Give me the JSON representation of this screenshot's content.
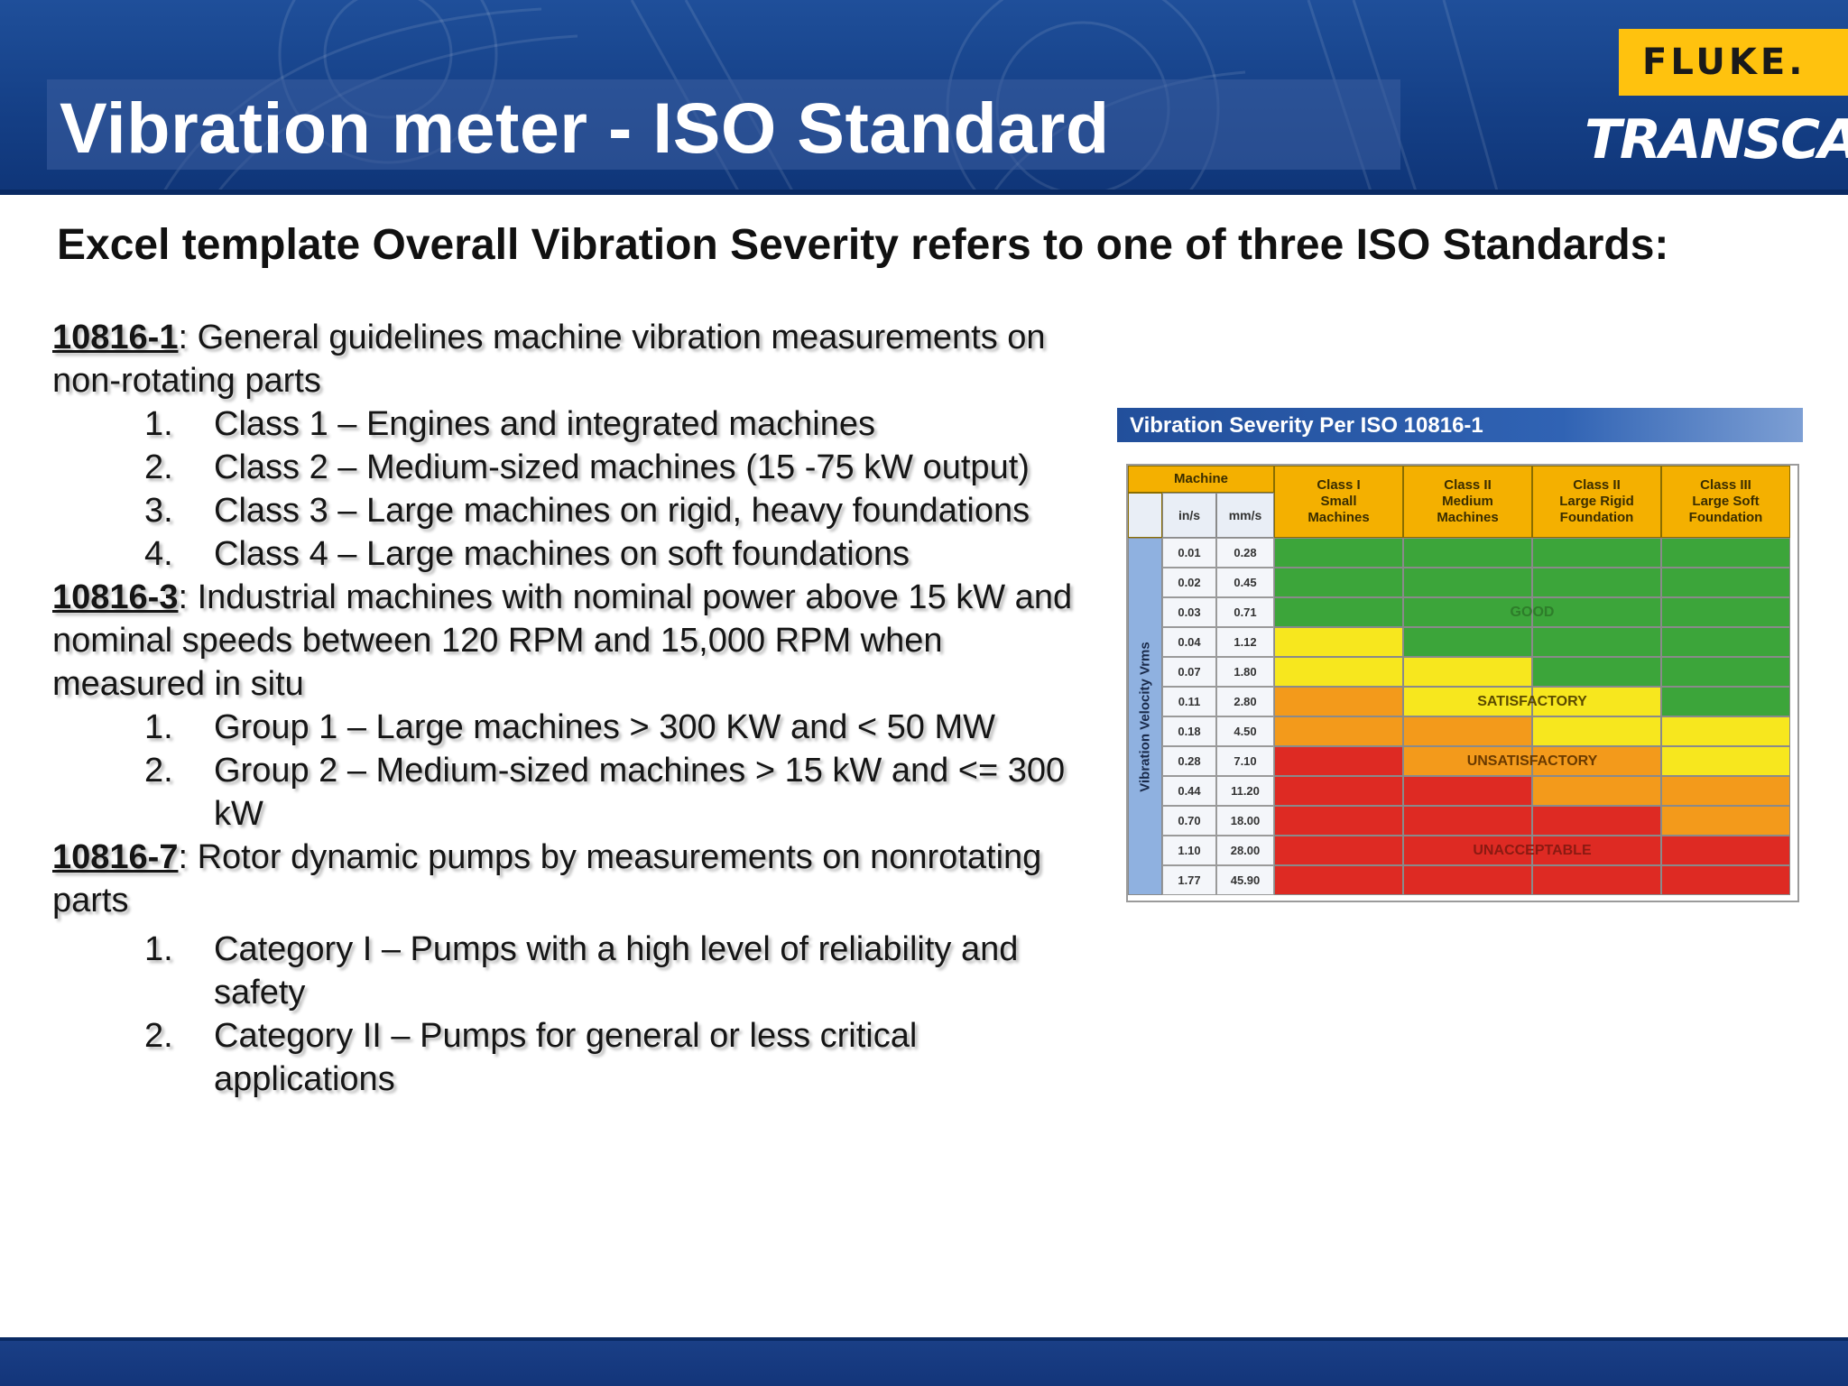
{
  "header": {
    "title": "Vibration meter - ISO Standard",
    "logos": {
      "fluke": "FLUKE.",
      "transcat": "TRANSCAT"
    },
    "colors": {
      "band": "#154087",
      "fluke_badge": "#ffc20e"
    }
  },
  "subtitle": "Excel template Overall Vibration Severity refers to one of three ISO Standards:",
  "standards": [
    {
      "code": "10816-1",
      "desc": ": General guidelines machine vibration measurements on non-rotating parts",
      "items": [
        {
          "num": "1.",
          "text": "Class 1 – Engines and integrated machines"
        },
        {
          "num": "2.",
          "text": "Class 2 – Medium-sized machines (15 -75 kW output)"
        },
        {
          "num": "3.",
          "text": "Class 3 – Large machines on rigid, heavy foundations"
        },
        {
          "num": "4.",
          "text": "Class 4 – Large machines on soft foundations"
        }
      ]
    },
    {
      "code": "10816-3",
      "desc": ": Industrial machines with nominal power above 15 kW and nominal speeds between 120 RPM and 15,000 RPM when measured in situ",
      "items": [
        {
          "num": "1.",
          "text": "Group 1 – Large machines > 300 KW and < 50 MW"
        },
        {
          "num": "2.",
          "text": "Group 2 – Medium-sized machines > 15 kW and <= 300 kW"
        }
      ]
    },
    {
      "code": "10816-7",
      "desc": ": Rotor dynamic pumps by measurements on nonrotating parts",
      "items": [
        {
          "num": "1.",
          "text": "Category I – Pumps with a high level of reliability and safety"
        },
        {
          "num": "2.",
          "text": "Category II – Pumps for general or less critical applications"
        }
      ]
    }
  ],
  "iso_table": {
    "title": "Vibration Severity Per ISO 10816-1",
    "machine_header": "Machine",
    "unit_in": "in/s",
    "unit_mm": "mm/s",
    "axis_label": "Vibration Velocity Vrms",
    "classes": [
      [
        "Class I",
        "Small",
        "Machines"
      ],
      [
        "Class II",
        "Medium",
        "Machines"
      ],
      [
        "Class II",
        "Large Rigid",
        "Foundation"
      ],
      [
        "Class III",
        "Large Soft",
        "Foundation"
      ]
    ],
    "rows": [
      {
        "in": "0.01",
        "mm": "0.28"
      },
      {
        "in": "0.02",
        "mm": "0.45"
      },
      {
        "in": "0.03",
        "mm": "0.71"
      },
      {
        "in": "0.04",
        "mm": "1.12"
      },
      {
        "in": "0.07",
        "mm": "1.80"
      },
      {
        "in": "0.11",
        "mm": "2.80"
      },
      {
        "in": "0.18",
        "mm": "4.50"
      },
      {
        "in": "0.28",
        "mm": "7.10"
      },
      {
        "in": "0.44",
        "mm": "11.20"
      },
      {
        "in": "0.70",
        "mm": "18.00"
      },
      {
        "in": "1.10",
        "mm": "28.00"
      },
      {
        "in": "1.77",
        "mm": "45.90"
      }
    ],
    "grid": [
      [
        "g",
        "g",
        "g",
        "g"
      ],
      [
        "g",
        "g",
        "g",
        "g"
      ],
      [
        "g",
        "g",
        "g",
        "g"
      ],
      [
        "y",
        "g",
        "g",
        "g"
      ],
      [
        "y",
        "y",
        "g",
        "g"
      ],
      [
        "o",
        "y",
        "y",
        "g"
      ],
      [
        "o",
        "o",
        "y",
        "y"
      ],
      [
        "r",
        "o",
        "o",
        "y"
      ],
      [
        "r",
        "r",
        "o",
        "o"
      ],
      [
        "r",
        "r",
        "r",
        "o"
      ],
      [
        "r",
        "r",
        "r",
        "r"
      ],
      [
        "r",
        "r",
        "r",
        "r"
      ]
    ],
    "zones": [
      {
        "label": "GOOD",
        "row": 2,
        "col": 1.5,
        "color": "#2e7d2a"
      },
      {
        "label": "SATISFACTORY",
        "row": 5,
        "col": 1.5,
        "color": "#5a4a00"
      },
      {
        "label": "UNSATISFACTORY",
        "row": 7,
        "col": 1.5,
        "color": "#6a3a00"
      },
      {
        "label": "UNACCEPTABLE",
        "row": 10,
        "col": 1.5,
        "color": "#8a1a12"
      }
    ],
    "colors": {
      "g": "#3ca53a",
      "y": "#f7e71e",
      "o": "#f39a1b",
      "r": "#de2a23",
      "header": "#f4b000"
    }
  }
}
